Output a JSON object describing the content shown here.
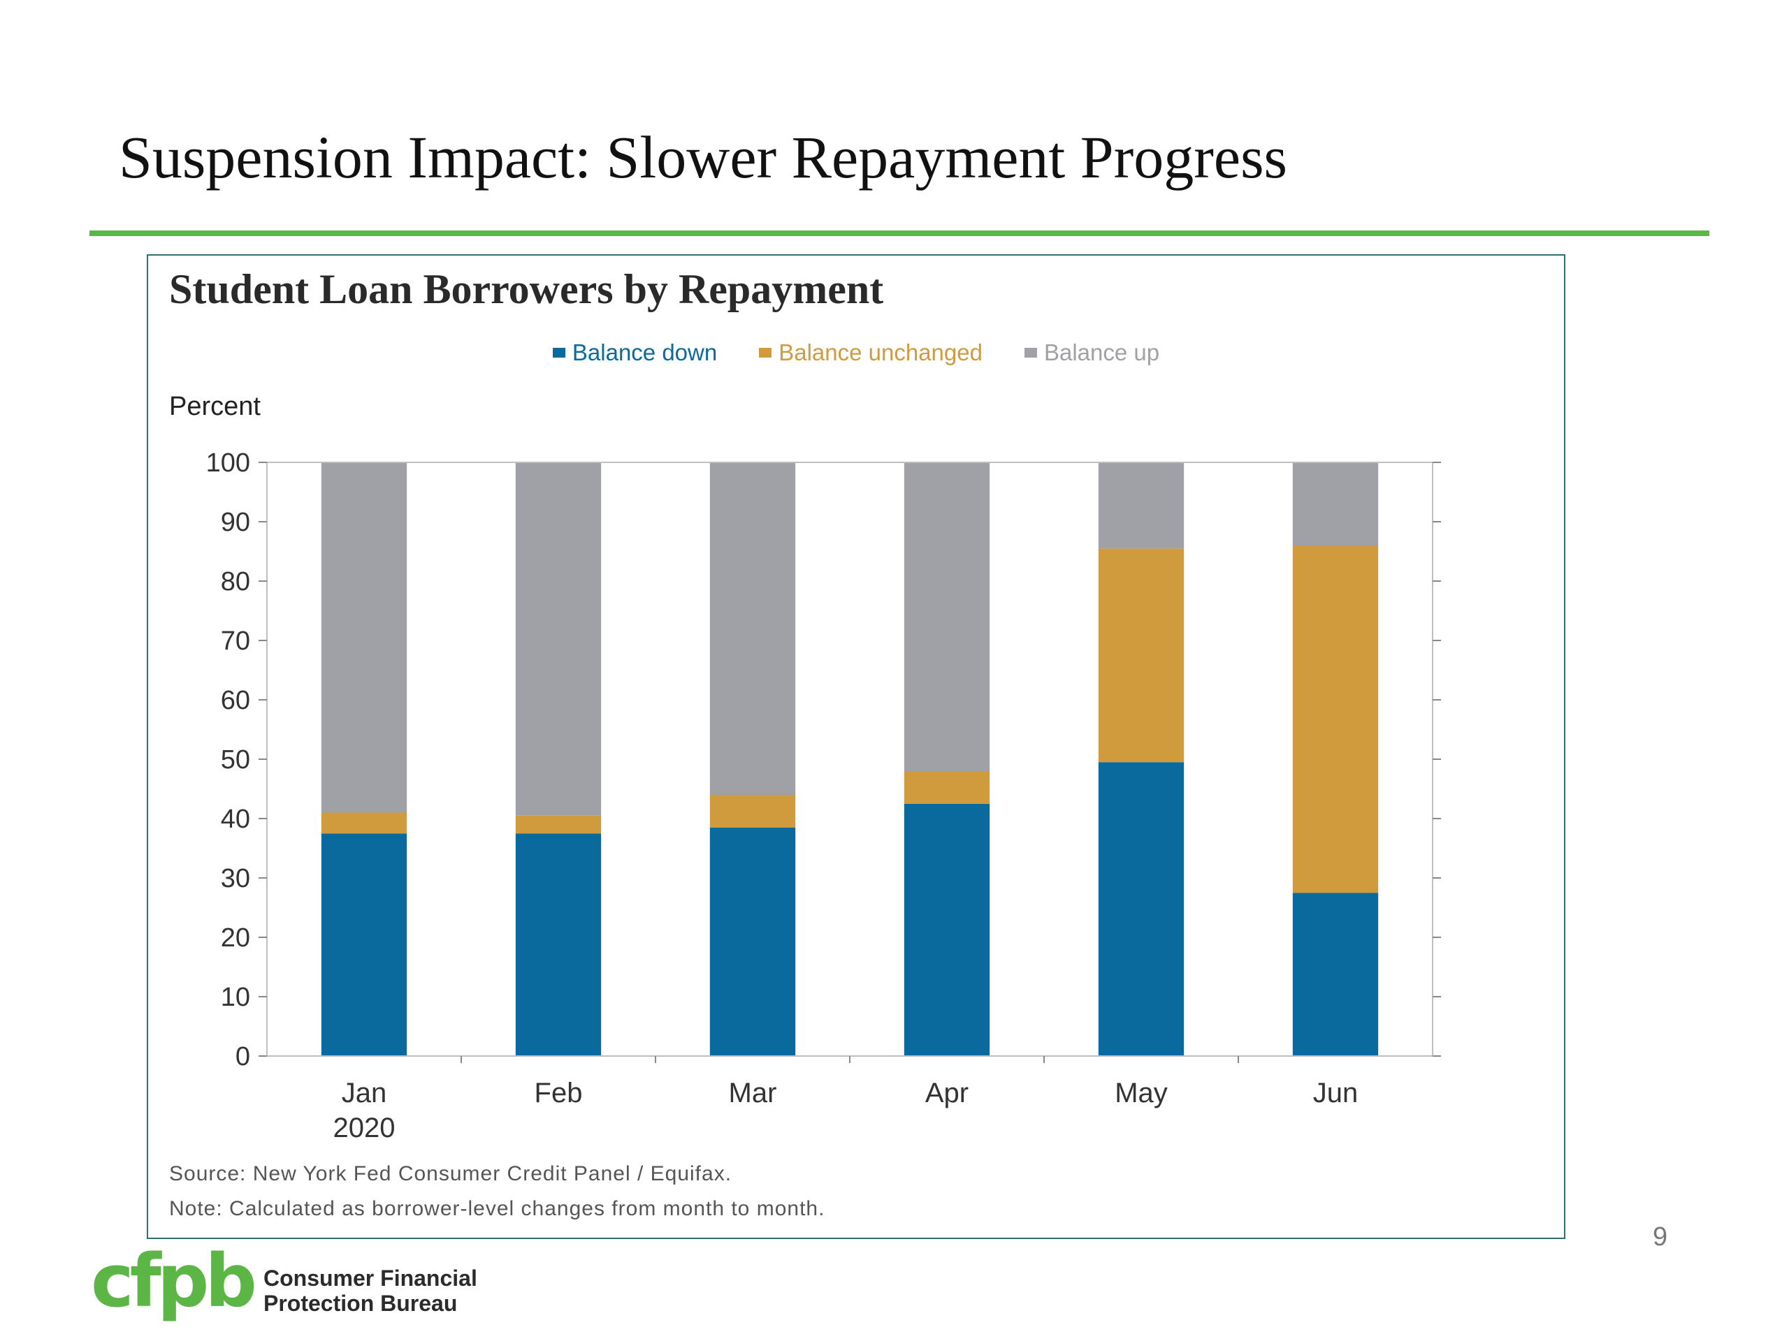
{
  "slide": {
    "title": "Suspension Impact: Slower Repayment Progress",
    "page_number": "9",
    "logo": {
      "wordmark": "cfpb",
      "name_line1": "Consumer Financial",
      "name_line2": "Protection Bureau"
    },
    "accent_color": "#5cb646"
  },
  "chart_data": {
    "type": "bar",
    "stacked": true,
    "title": "Student Loan Borrowers by Repayment",
    "ylabel": "Percent",
    "xlabel": "",
    "ylim": [
      0,
      100
    ],
    "yticks": [
      0,
      10,
      20,
      30,
      40,
      50,
      60,
      70,
      80,
      90,
      100
    ],
    "categories": [
      "Jan",
      "Feb",
      "Mar",
      "Apr",
      "May",
      "Jun"
    ],
    "category_sublabels": [
      "2020",
      "",
      "",
      "",
      "",
      ""
    ],
    "legend_position": "top-center",
    "grid": false,
    "series": [
      {
        "name": "Balance down",
        "color": "#0b6a9d",
        "values": [
          37.5,
          37.5,
          38.5,
          42.5,
          49.5,
          27.5
        ]
      },
      {
        "name": "Balance unchanged",
        "color": "#d09b3d",
        "values": [
          3.5,
          3.0,
          5.5,
          5.5,
          36.0,
          58.5
        ]
      },
      {
        "name": "Balance up",
        "color": "#a0a1a6",
        "values": [
          59.0,
          59.5,
          56.0,
          52.0,
          14.5,
          14.0
        ]
      }
    ],
    "source": "Source: New York Fed Consumer Credit Panel / Equifax.",
    "note": "Note: Calculated as borrower-level changes from month to month."
  }
}
